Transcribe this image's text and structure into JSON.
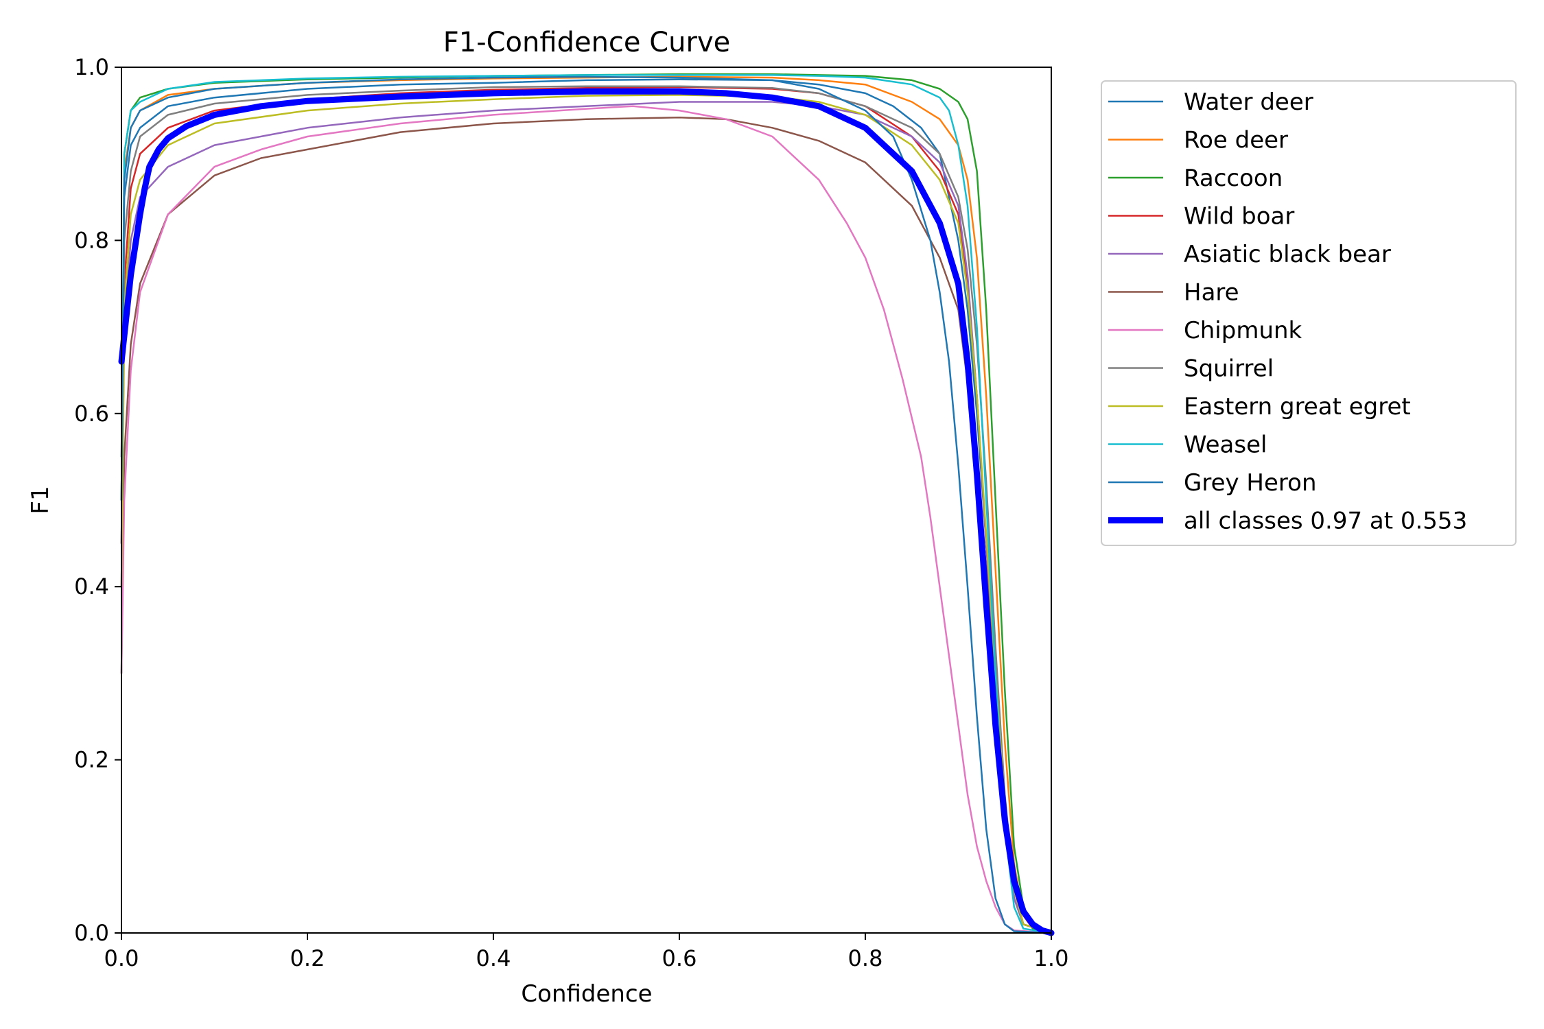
{
  "chart_data": {
    "type": "line",
    "title": "F1-Confidence Curve",
    "xlabel": "Confidence",
    "ylabel": "F1",
    "xlim": [
      0.0,
      1.0
    ],
    "ylim": [
      0.0,
      1.0
    ],
    "xticks": [
      "0.0",
      "0.2",
      "0.4",
      "0.6",
      "0.8",
      "1.0"
    ],
    "yticks": [
      "0.0",
      "0.2",
      "0.4",
      "0.6",
      "0.8",
      "1.0"
    ],
    "grid": false,
    "legend_position": "outside-right-top",
    "series": [
      {
        "name": "Water deer",
        "color": "#1f77b4",
        "x": [
          0.0,
          0.003,
          0.01,
          0.02,
          0.05,
          0.1,
          0.2,
          0.3,
          0.4,
          0.5,
          0.6,
          0.7,
          0.75,
          0.8,
          0.83,
          0.86,
          0.88,
          0.9,
          0.91,
          0.92,
          0.93,
          0.94,
          0.95,
          0.96,
          0.97,
          1.0
        ],
        "y": [
          0.55,
          0.85,
          0.91,
          0.93,
          0.955,
          0.965,
          0.975,
          0.98,
          0.982,
          0.985,
          0.986,
          0.985,
          0.98,
          0.97,
          0.955,
          0.93,
          0.9,
          0.8,
          0.72,
          0.6,
          0.45,
          0.3,
          0.15,
          0.05,
          0.01,
          0.0
        ]
      },
      {
        "name": "Roe deer",
        "color": "#ff7f0e",
        "x": [
          0.0,
          0.003,
          0.01,
          0.02,
          0.05,
          0.1,
          0.2,
          0.3,
          0.4,
          0.5,
          0.6,
          0.7,
          0.75,
          0.8,
          0.85,
          0.88,
          0.9,
          0.91,
          0.92,
          0.93,
          0.94,
          0.95,
          0.96,
          0.97,
          0.98,
          1.0
        ],
        "y": [
          0.5,
          0.88,
          0.93,
          0.95,
          0.968,
          0.975,
          0.982,
          0.985,
          0.987,
          0.988,
          0.989,
          0.988,
          0.985,
          0.98,
          0.96,
          0.94,
          0.91,
          0.87,
          0.78,
          0.62,
          0.42,
          0.22,
          0.08,
          0.02,
          0.005,
          0.0
        ]
      },
      {
        "name": "Raccoon",
        "color": "#2ca02c",
        "x": [
          0.0,
          0.003,
          0.01,
          0.02,
          0.05,
          0.1,
          0.2,
          0.3,
          0.4,
          0.5,
          0.6,
          0.7,
          0.75,
          0.8,
          0.85,
          0.88,
          0.9,
          0.91,
          0.92,
          0.93,
          0.94,
          0.95,
          0.96,
          0.97,
          0.98,
          1.0
        ],
        "y": [
          0.5,
          0.9,
          0.95,
          0.965,
          0.975,
          0.982,
          0.986,
          0.988,
          0.99,
          0.991,
          0.992,
          0.992,
          0.991,
          0.99,
          0.985,
          0.975,
          0.96,
          0.94,
          0.88,
          0.72,
          0.5,
          0.28,
          0.1,
          0.03,
          0.005,
          0.0
        ]
      },
      {
        "name": "Wild boar",
        "color": "#d62728",
        "x": [
          0.0,
          0.003,
          0.01,
          0.02,
          0.05,
          0.1,
          0.2,
          0.3,
          0.4,
          0.5,
          0.6,
          0.7,
          0.75,
          0.8,
          0.85,
          0.88,
          0.9,
          0.91,
          0.92,
          0.93,
          0.94,
          0.95,
          0.96,
          0.97,
          1.0
        ],
        "y": [
          0.45,
          0.75,
          0.86,
          0.9,
          0.93,
          0.95,
          0.963,
          0.97,
          0.974,
          0.976,
          0.977,
          0.975,
          0.97,
          0.955,
          0.92,
          0.88,
          0.83,
          0.75,
          0.62,
          0.45,
          0.28,
          0.13,
          0.04,
          0.01,
          0.0
        ]
      },
      {
        "name": "Asiatic black bear",
        "color": "#9467bd",
        "x": [
          0.0,
          0.003,
          0.01,
          0.02,
          0.05,
          0.1,
          0.2,
          0.3,
          0.4,
          0.5,
          0.6,
          0.7,
          0.75,
          0.8,
          0.85,
          0.88,
          0.9,
          0.91,
          0.92,
          0.93,
          0.94,
          0.95,
          0.96,
          0.97,
          1.0
        ],
        "y": [
          0.4,
          0.7,
          0.8,
          0.85,
          0.885,
          0.91,
          0.93,
          0.942,
          0.95,
          0.955,
          0.96,
          0.96,
          0.955,
          0.945,
          0.92,
          0.89,
          0.84,
          0.76,
          0.62,
          0.45,
          0.28,
          0.13,
          0.04,
          0.01,
          0.0
        ]
      },
      {
        "name": "Hare",
        "color": "#8c564b",
        "x": [
          0.0,
          0.003,
          0.01,
          0.02,
          0.05,
          0.1,
          0.15,
          0.2,
          0.3,
          0.4,
          0.5,
          0.6,
          0.65,
          0.7,
          0.75,
          0.8,
          0.85,
          0.88,
          0.9,
          0.92,
          0.93,
          0.94,
          0.95,
          0.96,
          0.97,
          1.0
        ],
        "y": [
          0.3,
          0.55,
          0.68,
          0.75,
          0.83,
          0.875,
          0.895,
          0.905,
          0.925,
          0.935,
          0.94,
          0.942,
          0.94,
          0.93,
          0.915,
          0.89,
          0.84,
          0.78,
          0.72,
          0.55,
          0.42,
          0.28,
          0.14,
          0.05,
          0.01,
          0.0
        ]
      },
      {
        "name": "Chipmunk",
        "color": "#e377c2",
        "x": [
          0.0,
          0.003,
          0.01,
          0.02,
          0.05,
          0.1,
          0.15,
          0.2,
          0.3,
          0.4,
          0.5,
          0.55,
          0.6,
          0.65,
          0.7,
          0.75,
          0.78,
          0.8,
          0.82,
          0.84,
          0.86,
          0.87,
          0.88,
          0.89,
          0.9,
          0.91,
          0.92,
          0.93,
          0.94,
          0.95,
          0.96,
          1.0
        ],
        "y": [
          0.3,
          0.5,
          0.65,
          0.74,
          0.83,
          0.885,
          0.905,
          0.92,
          0.935,
          0.945,
          0.952,
          0.955,
          0.95,
          0.94,
          0.92,
          0.87,
          0.82,
          0.78,
          0.72,
          0.64,
          0.55,
          0.48,
          0.4,
          0.32,
          0.24,
          0.16,
          0.1,
          0.06,
          0.03,
          0.01,
          0.003,
          0.0
        ]
      },
      {
        "name": "Squirrel",
        "color": "#7f7f7f",
        "x": [
          0.0,
          0.003,
          0.01,
          0.02,
          0.05,
          0.1,
          0.2,
          0.3,
          0.4,
          0.5,
          0.6,
          0.7,
          0.75,
          0.8,
          0.85,
          0.88,
          0.9,
          0.91,
          0.92,
          0.93,
          0.94,
          0.95,
          0.96,
          0.97,
          1.0
        ],
        "y": [
          0.45,
          0.8,
          0.88,
          0.92,
          0.945,
          0.958,
          0.968,
          0.973,
          0.977,
          0.978,
          0.978,
          0.976,
          0.97,
          0.955,
          0.93,
          0.9,
          0.85,
          0.79,
          0.68,
          0.52,
          0.33,
          0.16,
          0.05,
          0.01,
          0.0
        ]
      },
      {
        "name": "Eastern great egret",
        "color": "#bcbd22",
        "x": [
          0.0,
          0.003,
          0.01,
          0.02,
          0.05,
          0.1,
          0.2,
          0.3,
          0.4,
          0.5,
          0.6,
          0.7,
          0.75,
          0.8,
          0.85,
          0.88,
          0.9,
          0.91,
          0.92,
          0.93,
          0.94,
          0.95,
          0.96,
          0.97,
          1.0
        ],
        "y": [
          0.4,
          0.72,
          0.83,
          0.87,
          0.91,
          0.935,
          0.95,
          0.958,
          0.963,
          0.967,
          0.968,
          0.966,
          0.96,
          0.945,
          0.91,
          0.87,
          0.82,
          0.74,
          0.62,
          0.46,
          0.3,
          0.15,
          0.05,
          0.01,
          0.0
        ]
      },
      {
        "name": "Weasel",
        "color": "#17becf",
        "x": [
          0.0,
          0.003,
          0.01,
          0.02,
          0.05,
          0.1,
          0.2,
          0.3,
          0.4,
          0.5,
          0.6,
          0.7,
          0.75,
          0.8,
          0.85,
          0.88,
          0.89,
          0.9,
          0.91,
          0.92,
          0.93,
          0.94,
          0.95,
          0.96,
          0.97,
          1.0
        ],
        "y": [
          0.5,
          0.9,
          0.95,
          0.96,
          0.975,
          0.983,
          0.987,
          0.989,
          0.99,
          0.991,
          0.991,
          0.991,
          0.99,
          0.988,
          0.98,
          0.965,
          0.95,
          0.91,
          0.84,
          0.7,
          0.5,
          0.3,
          0.12,
          0.03,
          0.005,
          0.0
        ]
      },
      {
        "name": "Grey Heron",
        "color": "#1f77b4",
        "x": [
          0.0,
          0.003,
          0.01,
          0.02,
          0.05,
          0.1,
          0.2,
          0.3,
          0.4,
          0.5,
          0.6,
          0.7,
          0.75,
          0.8,
          0.83,
          0.85,
          0.87,
          0.88,
          0.89,
          0.9,
          0.91,
          0.92,
          0.93,
          0.94,
          0.95,
          0.96,
          1.0
        ],
        "y": [
          0.5,
          0.87,
          0.93,
          0.95,
          0.965,
          0.975,
          0.982,
          0.986,
          0.988,
          0.989,
          0.988,
          0.985,
          0.975,
          0.95,
          0.92,
          0.87,
          0.8,
          0.74,
          0.66,
          0.54,
          0.4,
          0.25,
          0.12,
          0.04,
          0.01,
          0.002,
          0.0
        ]
      },
      {
        "name": "all classes 0.97 at 0.553",
        "color": "#0000ff",
        "bold": true,
        "x": [
          0.0,
          0.003,
          0.01,
          0.02,
          0.025,
          0.03,
          0.04,
          0.05,
          0.07,
          0.1,
          0.15,
          0.2,
          0.3,
          0.4,
          0.5,
          0.553,
          0.6,
          0.65,
          0.7,
          0.75,
          0.8,
          0.85,
          0.88,
          0.9,
          0.91,
          0.92,
          0.93,
          0.94,
          0.95,
          0.96,
          0.97,
          0.98,
          0.99,
          1.0
        ],
        "y": [
          0.66,
          0.69,
          0.76,
          0.83,
          0.86,
          0.885,
          0.905,
          0.918,
          0.932,
          0.945,
          0.955,
          0.961,
          0.966,
          0.97,
          0.972,
          0.972,
          0.972,
          0.97,
          0.965,
          0.955,
          0.93,
          0.88,
          0.82,
          0.75,
          0.66,
          0.53,
          0.38,
          0.24,
          0.13,
          0.06,
          0.025,
          0.01,
          0.003,
          0.0
        ]
      }
    ]
  }
}
